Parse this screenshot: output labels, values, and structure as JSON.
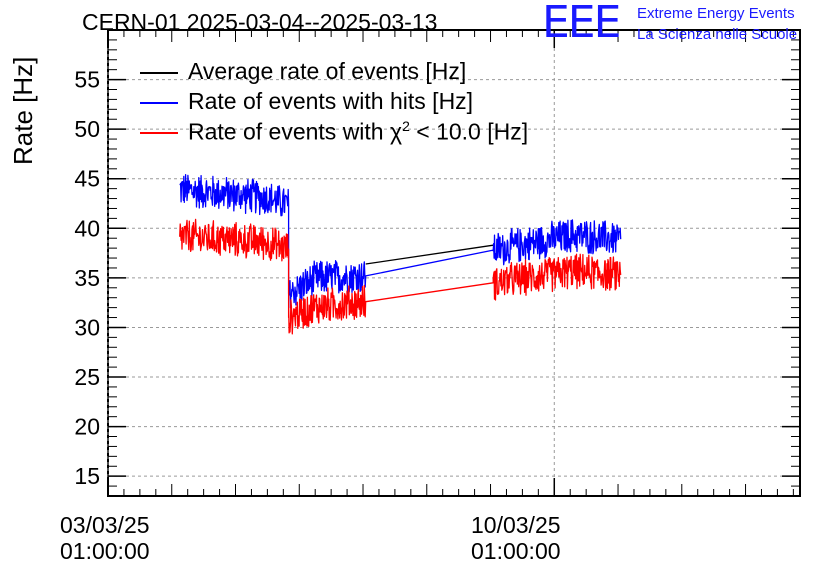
{
  "header": {
    "title": "CERN-01 2025-03-04--2025-03-13",
    "logo_mark": "EEE",
    "logo_line1": "Extreme Energy Events",
    "logo_line2": "La Scienza nelle Scuole"
  },
  "colors": {
    "average": "#000000",
    "hits": "#0000ff",
    "chi2": "#ff0000",
    "logo": "#1a1aff",
    "grid": "#9a9a9a"
  },
  "chart_data": {
    "type": "line",
    "title": "CERN-01 2025-03-04--2025-03-13",
    "ylabel": "Rate [Hz]",
    "xlabel": "",
    "ylim": [
      13,
      60
    ],
    "xlim": [
      "2025-03-03 01:00",
      "2025-03-13 21:30"
    ],
    "y_ticks": [
      15,
      20,
      25,
      30,
      35,
      40,
      45,
      50,
      55
    ],
    "x_ticks": [
      {
        "date": "2025-03-03 01:00",
        "label_line1": "03/03/25",
        "label_line2": "01:00:00"
      },
      {
        "date": "2025-03-10 01:00",
        "label_line1": "10/03/25",
        "label_line2": "01:00:00"
      }
    ],
    "grid": true,
    "legend_position": "top-left",
    "noise": {
      "Rate of events with hits [Hz]": 1.3,
      "Rate of events with χ² < 10.0 [Hz]": 1.3
    },
    "series": [
      {
        "name": "Average rate of events [Hz]",
        "legend_label": "Average rate of events [Hz]",
        "x": [
          "2025-03-07 02:00",
          "2025-03-09 02:00"
        ],
        "y": [
          36.4,
          38.3
        ]
      },
      {
        "name": "Rate of events with hits [Hz]",
        "legend_label": "Rate of events with hits [Hz]",
        "x": [
          "2025-03-04 04:00",
          "2025-03-05 12:00",
          "2025-03-05 21:00",
          "2025-03-05 21:00",
          "2025-03-06 08:00",
          "2025-03-07 02:00",
          "2025-03-09 02:00",
          "2025-03-10 08:00",
          "2025-03-11 02:00"
        ],
        "y": [
          43.9,
          43.1,
          42.4,
          33.4,
          35.0,
          35.2,
          37.8,
          39.3,
          38.9
        ]
      },
      {
        "name": "Rate of events with χ² < 10.0 [Hz]",
        "legend_prefix": "Rate of events with ",
        "legend_chi": "χ",
        "legend_sup": "2",
        "legend_suffix": " < 10.0 [Hz]",
        "x": [
          "2025-03-04 04:00",
          "2025-03-05 12:00",
          "2025-03-05 21:00",
          "2025-03-05 21:00",
          "2025-03-06 08:00",
          "2025-03-07 02:00",
          "2025-03-09 02:00",
          "2025-03-10 08:00",
          "2025-03-11 02:00"
        ],
        "y": [
          39.2,
          38.6,
          37.9,
          31.0,
          32.1,
          32.6,
          34.5,
          35.7,
          35.3
        ]
      }
    ]
  }
}
